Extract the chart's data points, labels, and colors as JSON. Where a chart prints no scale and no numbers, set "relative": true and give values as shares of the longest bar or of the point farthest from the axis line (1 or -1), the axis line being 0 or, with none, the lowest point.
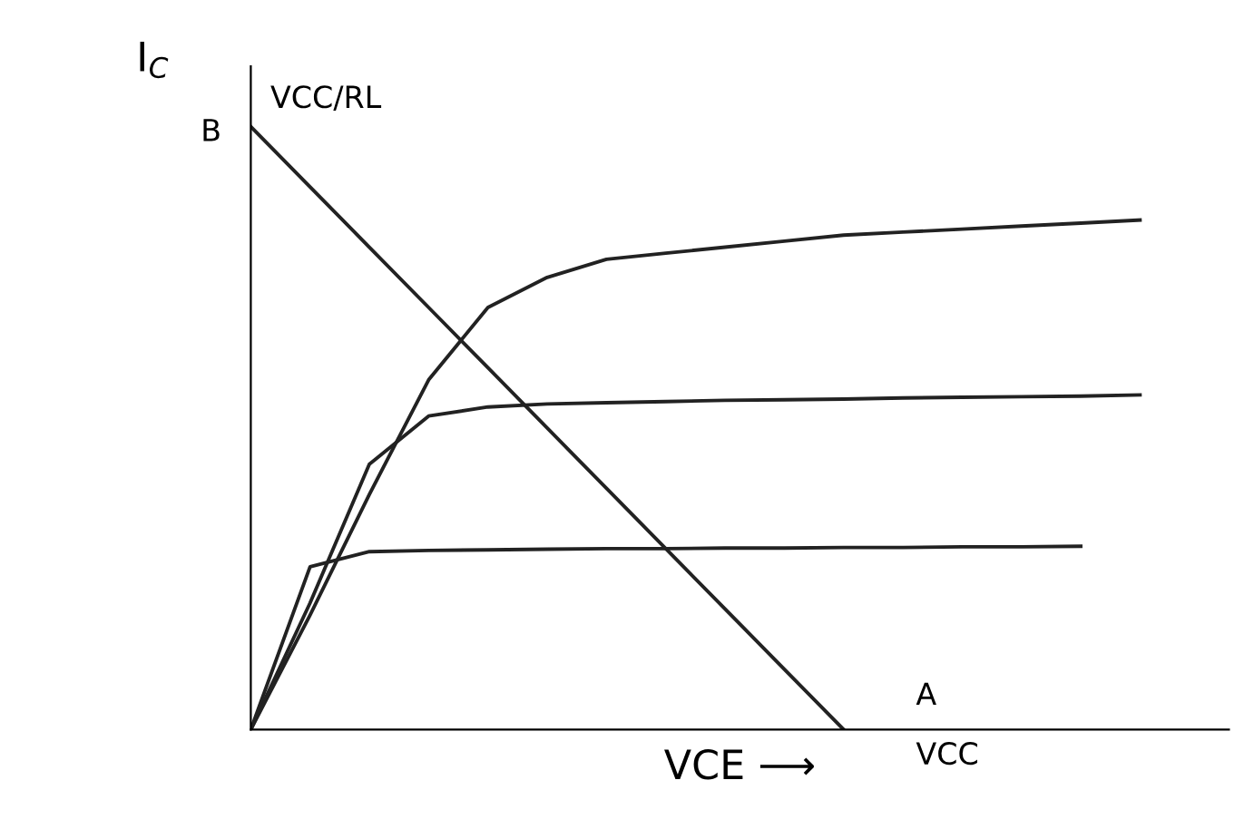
{
  "chart_data": {
    "type": "line",
    "relative": true,
    "xlabel": "VCE ⟶",
    "ylabel": "I$_{C}$",
    "categories": [
      null,
      null,
      null,
      null,
      null,
      null,
      null,
      null,
      null,
      null,
      null,
      null,
      null,
      null,
      null,
      null
    ],
    "series": [
      {
        "color": "#222222",
        "values": [
          1,
          0.9,
          0.8,
          0.7,
          0.6,
          0.5,
          0.4,
          0.3,
          0.2,
          0.1,
          0,
          null,
          null,
          null,
          null,
          null
        ]
      },
      {
        "color": "#222222",
        "values": [
          0,
          0.19,
          0.39,
          0.58,
          0.7,
          0.75,
          0.78,
          0.79,
          0.8,
          0.81,
          0.82,
          0.825,
          0.83,
          0.835,
          0.84,
          0.845
        ]
      },
      {
        "color": "#222222",
        "values": [
          0,
          0.21,
          0.44,
          0.52,
          0.535,
          0.54,
          0.542,
          0.544,
          0.546,
          0.547,
          0.548,
          0.55,
          0.551,
          0.552,
          0.553,
          0.555
        ]
      },
      {
        "color": "#222222",
        "values": [
          0,
          0.27,
          0.295,
          0.297,
          0.298,
          0.299,
          0.3,
          0.3,
          0.301,
          0.301,
          0.302,
          0.302,
          0.303,
          0.303,
          0.304,
          null
        ]
      }
    ],
    "annotations": [
      "B",
      "VCC/RL",
      "A",
      "VCC"
    ],
    "marker": "none",
    "line_style": "solid"
  }
}
